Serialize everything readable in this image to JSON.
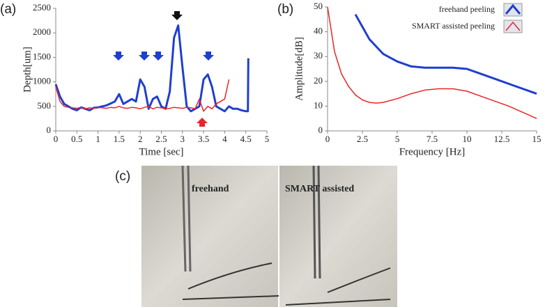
{
  "panel_labels": [
    "(a)",
    "(b)",
    "(c)"
  ],
  "photo_labels": [
    "freehand",
    "SMART assisted"
  ],
  "chart_data": [
    {
      "type": "line",
      "xlabel": "Time [sec]",
      "ylabel": "Depth[um]",
      "x": [
        0,
        0.1,
        0.2,
        0.3,
        0.4,
        0.5,
        0.6,
        0.7,
        0.8,
        0.9,
        1.0,
        1.1,
        1.2,
        1.3,
        1.4,
        1.5,
        1.6,
        1.7,
        1.8,
        1.9,
        2.0,
        2.1,
        2.2,
        2.3,
        2.4,
        2.5,
        2.6,
        2.7,
        2.8,
        2.9,
        3.0,
        3.1,
        3.2,
        3.3,
        3.4,
        3.5,
        3.6,
        3.7,
        3.8,
        3.9,
        4.0,
        4.1,
        4.2,
        4.3,
        4.4,
        4.5,
        4.55,
        4.56
      ],
      "series": [
        {
          "color": "#1f3fd0",
          "values": [
            950,
            700,
            550,
            500,
            450,
            420,
            480,
            450,
            420,
            470,
            480,
            500,
            520,
            560,
            600,
            750,
            550,
            600,
            650,
            600,
            1050,
            900,
            450,
            650,
            700,
            500,
            450,
            800,
            1900,
            2150,
            1300,
            500,
            400,
            450,
            500,
            1050,
            1150,
            900,
            500,
            450,
            400,
            500,
            450,
            450,
            420,
            400,
            400,
            1480
          ]
        },
        {
          "color": "#e8252a",
          "values": [
            900,
            600,
            500,
            480,
            470,
            460,
            480,
            450,
            470,
            460,
            480,
            470,
            460,
            480,
            470,
            500,
            470,
            460,
            480,
            470,
            450,
            480,
            500,
            450,
            480,
            470,
            450,
            460,
            480,
            470,
            460,
            480,
            470,
            450,
            650,
            400,
            500,
            450,
            550,
            600,
            650,
            1050,
            null,
            null,
            null,
            null,
            null,
            null
          ]
        }
      ],
      "xlim": [
        0,
        5
      ],
      "xticks": [
        0,
        0.5,
        1,
        1.5,
        2,
        2.5,
        3,
        3.5,
        4,
        4.5,
        5
      ],
      "ylim": [
        0,
        2500
      ],
      "yticks": [
        0,
        500,
        1000,
        1500,
        2000,
        2500
      ],
      "grid": false
    },
    {
      "type": "line",
      "xlabel": "Frequency [Hz]",
      "ylabel": "Amplitude[dB]",
      "x": [
        0,
        0.5,
        1,
        1.5,
        2,
        2.5,
        3,
        3.5,
        4,
        5,
        6,
        7,
        8,
        9,
        10,
        11,
        12,
        13,
        14,
        15
      ],
      "series": [
        {
          "name": "freehand peeling",
          "color": "#1f3fd0",
          "values": [
            null,
            null,
            null,
            null,
            47,
            42,
            37,
            34,
            31,
            28,
            26,
            25.5,
            25.5,
            25.5,
            25,
            23,
            21,
            19,
            17,
            15
          ]
        },
        {
          "name": "SMART assisted peeling",
          "color": "#e8252a",
          "values": [
            50,
            32,
            23,
            18,
            14.5,
            12.5,
            11.5,
            11.2,
            11.5,
            13,
            15,
            16.5,
            17,
            17,
            16,
            14,
            12,
            10,
            7.5,
            5
          ]
        }
      ],
      "xlim": [
        0,
        15
      ],
      "xticks": [
        0,
        2.5,
        5,
        7.5,
        10,
        12.5,
        15
      ],
      "ylim": [
        0,
        50
      ],
      "yticks": [
        0,
        10,
        20,
        30,
        40,
        50
      ],
      "grid": false,
      "legend": "upper right"
    }
  ]
}
